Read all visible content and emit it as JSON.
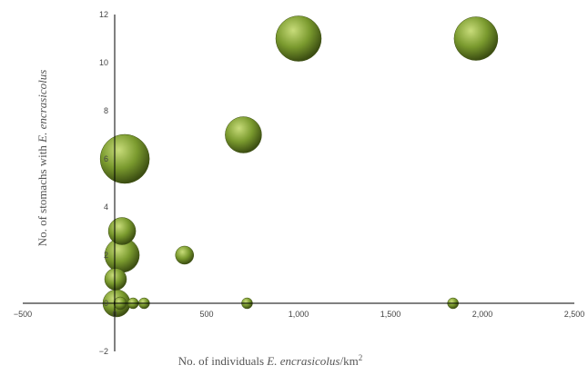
{
  "chart_data": {
    "type": "scatter",
    "subtype": "bubble",
    "title": "",
    "xlabel": {
      "prefix": "No. of individuals ",
      "species": "E. encrasicolus",
      "unit": "/km",
      "superscript": "2"
    },
    "ylabel": {
      "prefix": "No. of stomachs with ",
      "species": "E. encrasicolus"
    },
    "xlim": [
      -500,
      2500
    ],
    "ylim": [
      -2,
      12
    ],
    "x_ticks": [
      {
        "value": -500,
        "label": "−500"
      },
      {
        "value": 0,
        "label": "0"
      },
      {
        "value": 500,
        "label": "500"
      },
      {
        "value": 1000,
        "label": "1,000"
      },
      {
        "value": 1500,
        "label": "1,500"
      },
      {
        "value": 2000,
        "label": "2,000"
      },
      {
        "value": 2500,
        "label": "2,500"
      }
    ],
    "y_ticks": [
      {
        "value": -2,
        "label": "−2"
      },
      {
        "value": 0,
        "label": "0"
      },
      {
        "value": 2,
        "label": "2"
      },
      {
        "value": 4,
        "label": "4"
      },
      {
        "value": 6,
        "label": "6"
      },
      {
        "value": 8,
        "label": "8"
      },
      {
        "value": 10,
        "label": "10"
      },
      {
        "value": 12,
        "label": "12"
      }
    ],
    "grid": false,
    "legend": "none",
    "bubble_color": "#7a9a2e",
    "highlight_color": "#c8dc7a",
    "shadow_color": "#3c4e12",
    "points": [
      {
        "x": 1000,
        "y": 11,
        "size": 25
      },
      {
        "x": 1965,
        "y": 11,
        "size": 24
      },
      {
        "x": 700,
        "y": 7,
        "size": 20
      },
      {
        "x": 55,
        "y": 6,
        "size": 27
      },
      {
        "x": 40,
        "y": 3,
        "size": 15
      },
      {
        "x": 40,
        "y": 2,
        "size": 19
      },
      {
        "x": 380,
        "y": 2,
        "size": 10
      },
      {
        "x": 5,
        "y": 1,
        "size": 12
      },
      {
        "x": 10,
        "y": 0,
        "size": 15
      },
      {
        "x": 30,
        "y": 0,
        "size": 7
      },
      {
        "x": 100,
        "y": 0,
        "size": 6
      },
      {
        "x": 160,
        "y": 0,
        "size": 6
      },
      {
        "x": 720,
        "y": 0,
        "size": 6
      },
      {
        "x": 1840,
        "y": 0,
        "size": 6
      }
    ]
  }
}
